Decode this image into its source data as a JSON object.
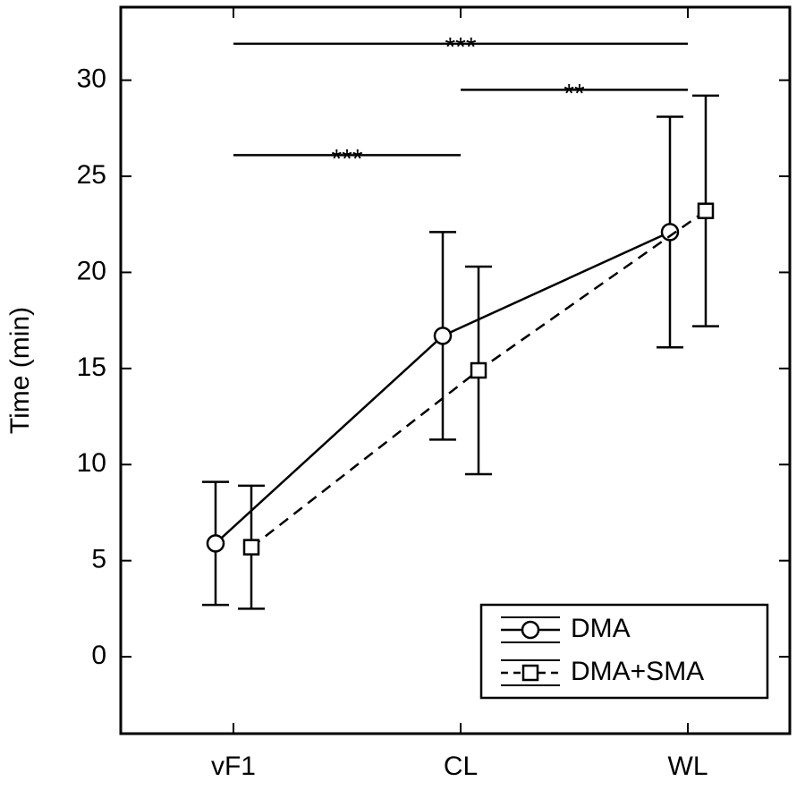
{
  "chart_data": {
    "type": "line",
    "y_label": "Time (min)",
    "categories": [
      "vF1",
      "CL",
      "WL"
    ],
    "series": [
      {
        "name": "DMA",
        "color": "#000000",
        "linestyle": "solid",
        "marker": "circle",
        "values": [
          5.9,
          16.7,
          22.1
        ],
        "errors": [
          3.2,
          5.4,
          6.0
        ]
      },
      {
        "name": "DMA+SMA",
        "color": "#000000",
        "linestyle": "dashed",
        "marker": "square",
        "values": [
          5.7,
          14.9,
          23.2
        ],
        "errors": [
          3.2,
          5.4,
          6.0
        ]
      }
    ],
    "annotations": [
      {
        "label": "***",
        "from": "vF1",
        "to": "CL",
        "y": 26.1
      },
      {
        "label": "**",
        "from": "CL",
        "to": "WL",
        "y": 29.5
      },
      {
        "label": "***",
        "from": "vF1",
        "to": "WL",
        "y": 31.9
      }
    ],
    "ylim": [
      -4,
      33.8
    ],
    "yticks": [
      0,
      5,
      10,
      15,
      20,
      25,
      30
    ],
    "grid": false,
    "legend": "lower right"
  }
}
